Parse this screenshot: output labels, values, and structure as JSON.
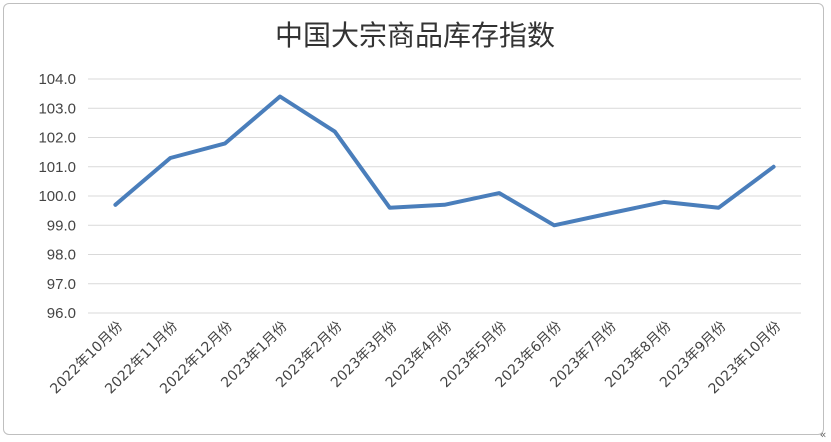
{
  "corner_mark": "«",
  "chart_data": {
    "type": "line",
    "title": "中国大宗商品库存指数",
    "xlabel": "",
    "ylabel": "",
    "categories": [
      "2022年10月份",
      "2022年11月份",
      "2022年12月份",
      "2023年1月份",
      "2023年2月份",
      "2023年3月份",
      "2023年4月份",
      "2023年5月份",
      "2023年6月份",
      "2023年7月份",
      "2023年8月份",
      "2023年9月份",
      "2023年10月份"
    ],
    "series": [
      {
        "values": [
          99.7,
          101.3,
          101.8,
          103.4,
          102.2,
          99.6,
          99.7,
          100.1,
          99.0,
          99.4,
          99.8,
          99.6,
          101.0
        ]
      }
    ],
    "yticks": [
      "96.0",
      "97.0",
      "98.0",
      "99.0",
      "100.0",
      "101.0",
      "102.0",
      "103.0",
      "104.0"
    ],
    "ylim": [
      96,
      104
    ],
    "grid": true,
    "legend": "none",
    "line_color": "#4a7ebb",
    "grid_color": "#d9d9d9"
  }
}
